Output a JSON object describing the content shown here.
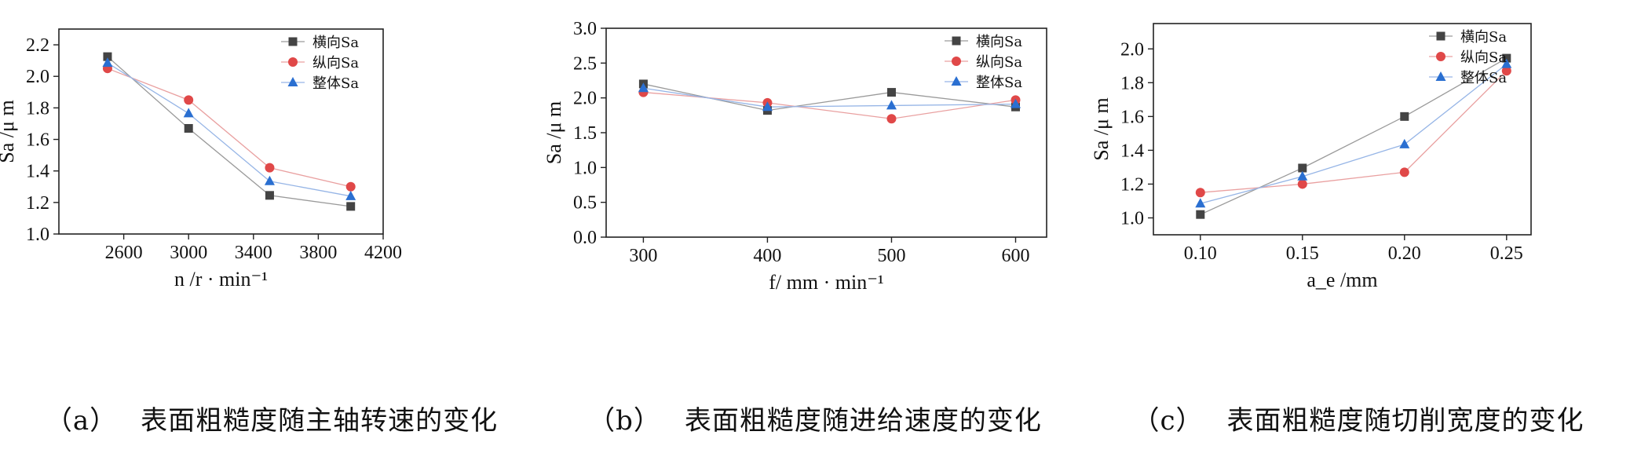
{
  "chart_data": [
    {
      "type": "line",
      "panel": "a",
      "caption_label": "（a）",
      "caption_text": "表面粗糙度随主轴转速的变化",
      "x": [
        2500,
        3000,
        3500,
        4000
      ],
      "xlim": [
        2200,
        4200
      ],
      "xticks": [
        2600,
        3000,
        3400,
        3800,
        4200
      ],
      "ylim": [
        1.0,
        2.3
      ],
      "yticks": [
        1.0,
        1.2,
        1.4,
        1.6,
        1.8,
        2.0,
        2.2
      ],
      "tick_decimals": 1,
      "xtick_decimals": 0,
      "xlabel": "n /r · min⁻¹",
      "ylabel": "Sa /μ m",
      "legend_position": "top-right",
      "series": [
        {
          "name": "横向Sa",
          "marker": "square",
          "color": "#444444",
          "line_color": "#9a9a9a",
          "values": [
            2.125,
            1.67,
            1.245,
            1.175
          ]
        },
        {
          "name": "纵向Sa",
          "marker": "circle",
          "color": "#e04848",
          "line_color": "#e9a0a0",
          "values": [
            2.05,
            1.85,
            1.42,
            1.3
          ]
        },
        {
          "name": "整体Sa",
          "marker": "triangle",
          "color": "#2a6fd1",
          "line_color": "#96b5e6",
          "values": [
            2.085,
            1.765,
            1.335,
            1.24
          ]
        }
      ]
    },
    {
      "type": "line",
      "panel": "b",
      "caption_label": "（b）",
      "caption_text": "表面粗糙度随进给速度的变化",
      "x": [
        300,
        400,
        500,
        600
      ],
      "xlim": [
        270,
        625
      ],
      "xticks": [
        300,
        400,
        500,
        600
      ],
      "ylim": [
        0.0,
        3.0
      ],
      "yticks": [
        0.0,
        0.5,
        1.0,
        1.5,
        2.0,
        2.5,
        3.0
      ],
      "tick_decimals": 1,
      "xtick_decimals": 0,
      "xlabel": "f/ mm · min⁻¹",
      "ylabel": "Sa /μ m",
      "legend_position": "top-right",
      "series": [
        {
          "name": "横向Sa",
          "marker": "square",
          "color": "#444444",
          "line_color": "#9a9a9a",
          "values": [
            2.2,
            1.82,
            2.08,
            1.87
          ]
        },
        {
          "name": "纵向Sa",
          "marker": "circle",
          "color": "#e04848",
          "line_color": "#e9a0a0",
          "values": [
            2.08,
            1.93,
            1.7,
            1.97
          ]
        },
        {
          "name": "整体Sa",
          "marker": "triangle",
          "color": "#2a6fd1",
          "line_color": "#96b5e6",
          "values": [
            2.14,
            1.87,
            1.89,
            1.91
          ]
        }
      ]
    },
    {
      "type": "line",
      "panel": "c",
      "caption_label": "（c）",
      "caption_text": "表面粗糙度随切削宽度的变化",
      "x": [
        0.1,
        0.15,
        0.2,
        0.25
      ],
      "xlim": [
        0.077,
        0.262
      ],
      "xticks": [
        0.1,
        0.15,
        0.2,
        0.25
      ],
      "ylim": [
        0.9,
        2.15
      ],
      "yticks": [
        1.0,
        1.2,
        1.4,
        1.6,
        1.8,
        2.0
      ],
      "tick_decimals": 1,
      "xtick_decimals": 2,
      "xlabel": "a_e /mm",
      "ylabel": "Sa /μ m",
      "legend_position": "top-right",
      "series": [
        {
          "name": "横向Sa",
          "marker": "square",
          "color": "#444444",
          "line_color": "#9a9a9a",
          "values": [
            1.02,
            1.295,
            1.6,
            1.945
          ]
        },
        {
          "name": "纵向Sa",
          "marker": "circle",
          "color": "#e04848",
          "line_color": "#e9a0a0",
          "values": [
            1.15,
            1.2,
            1.27,
            1.87
          ]
        },
        {
          "name": "整体Sa",
          "marker": "triangle",
          "color": "#2a6fd1",
          "line_color": "#96b5e6",
          "values": [
            1.085,
            1.245,
            1.435,
            1.91
          ]
        }
      ]
    }
  ]
}
